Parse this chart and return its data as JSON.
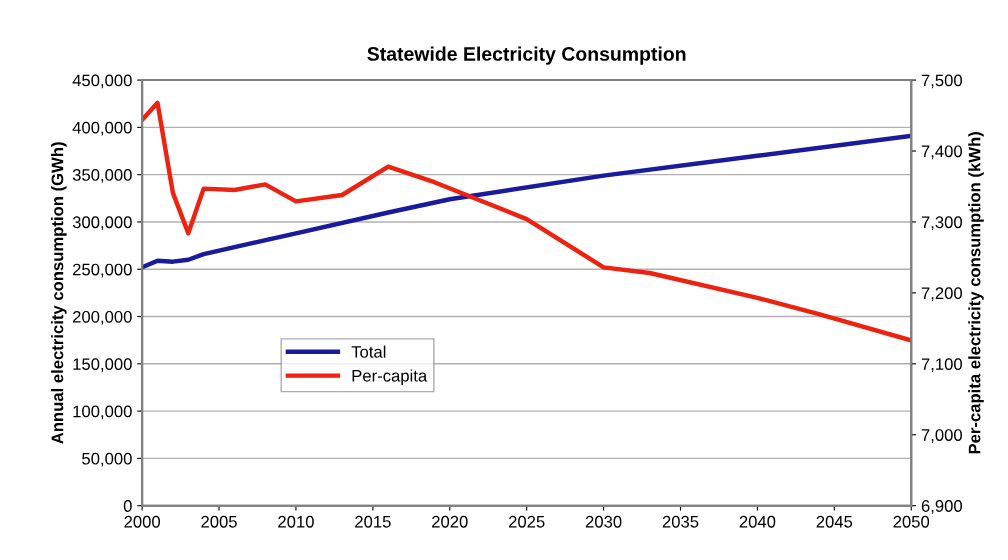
{
  "chart_data": {
    "type": "line",
    "title": "Statewide Electricity Consumption",
    "ylabel": "Annual electricity consumption (GWh)",
    "y2label": "Per-capita electricity consumption (kWh)",
    "xlim": [
      2000,
      2050
    ],
    "xticks": [
      2000,
      2005,
      2010,
      2015,
      2020,
      2025,
      2030,
      2035,
      2040,
      2045,
      2050
    ],
    "ylim": [
      0,
      450000
    ],
    "yticks": [
      {
        "value": 0,
        "label": "0"
      },
      {
        "value": 50000,
        "label": "50,000"
      },
      {
        "value": 100000,
        "label": "100,000"
      },
      {
        "value": 150000,
        "label": "150,000"
      },
      {
        "value": 200000,
        "label": "200,000"
      },
      {
        "value": 250000,
        "label": "250,000"
      },
      {
        "value": 300000,
        "label": "300,000"
      },
      {
        "value": 350000,
        "label": "350,000"
      },
      {
        "value": 400000,
        "label": "400,000"
      },
      {
        "value": 450000,
        "label": "450,000"
      }
    ],
    "y2lim": [
      6900,
      7500
    ],
    "y2ticks": [
      {
        "value": 6900,
        "label": "6,900"
      },
      {
        "value": 7000,
        "label": "7,000"
      },
      {
        "value": 7100,
        "label": "7,100"
      },
      {
        "value": 7200,
        "label": "7,200"
      },
      {
        "value": 7300,
        "label": "7,300"
      },
      {
        "value": 7400,
        "label": "7,400"
      },
      {
        "value": 7500,
        "label": "7,500"
      }
    ],
    "grid": "y",
    "legend": "center left",
    "line_style": "solid",
    "series": [
      {
        "name": "Total",
        "color": "#1a1a9c",
        "x": [
          2000,
          2001,
          2002,
          2003,
          2004,
          2010,
          2016,
          2020,
          2030,
          2040,
          2050
        ],
        "values": [
          252000,
          259000,
          258000,
          260000,
          266000,
          288000,
          310000,
          324000,
          349000,
          370000,
          391000
        ]
      },
      {
        "name": "Per-capita",
        "color": "#ee2211",
        "axis": "y2",
        "x": [
          2000,
          2001,
          2002,
          2003,
          2004,
          2006,
          2008,
          2010,
          2013,
          2016,
          2019,
          2025,
          2030,
          2033,
          2040,
          2044,
          2050
        ],
        "values": [
          7444,
          7468,
          7341,
          7284,
          7347,
          7345,
          7353,
          7329,
          7338,
          7378,
          7356,
          7304,
          7236,
          7228,
          7193,
          7170,
          7133
        ]
      }
    ]
  }
}
